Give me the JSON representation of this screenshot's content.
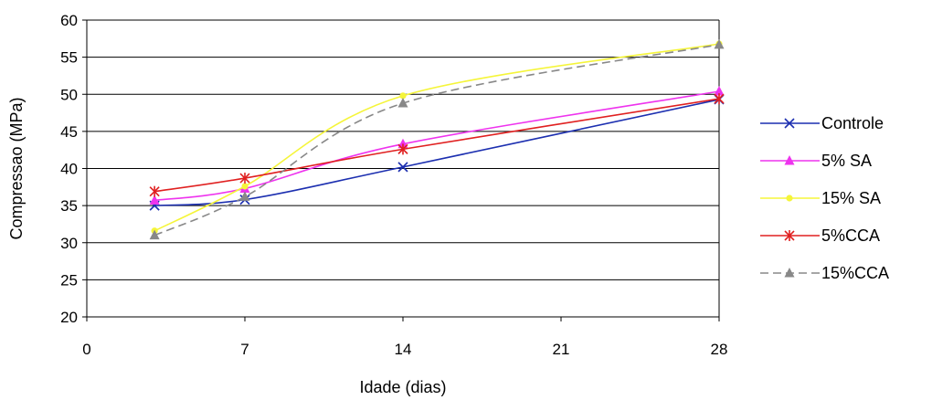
{
  "chart_data": {
    "type": "line",
    "title": "",
    "xlabel": "Idade (dias)",
    "ylabel": "Compressao (MPa)",
    "xlim": [
      0,
      28
    ],
    "ylim": [
      20,
      60
    ],
    "xticks": [
      0,
      7,
      14,
      21,
      28
    ],
    "yticks": [
      20,
      25,
      30,
      35,
      40,
      45,
      50,
      55,
      60
    ],
    "grid": "horizontal",
    "legend": "right",
    "series": [
      {
        "name": "Controle",
        "color": "#1c2fb0",
        "dash": "solid",
        "marker": "x",
        "x": [
          3,
          7,
          14,
          28
        ],
        "y": [
          35.0,
          35.8,
          40.2,
          49.3
        ]
      },
      {
        "name": "5% SA",
        "color": "#ee33ee",
        "dash": "solid",
        "marker": "triangle",
        "x": [
          3,
          7,
          14,
          28
        ],
        "y": [
          35.7,
          37.3,
          43.3,
          50.4
        ]
      },
      {
        "name": "15% SA",
        "color": "#f5f53a",
        "dash": "solid",
        "marker": "circle",
        "x": [
          3,
          7,
          14,
          28
        ],
        "y": [
          31.6,
          37.6,
          49.8,
          56.8
        ]
      },
      {
        "name": "5%CCA",
        "color": "#e02020",
        "dash": "solid",
        "marker": "star",
        "x": [
          3,
          7,
          14,
          28
        ],
        "y": [
          36.9,
          38.7,
          42.6,
          49.4
        ]
      },
      {
        "name": "15%CCA",
        "color": "#888888",
        "dash": "dashed",
        "marker": "triangle",
        "x": [
          3,
          7,
          14,
          28
        ],
        "y": [
          31.0,
          36.2,
          48.8,
          56.7
        ]
      }
    ]
  }
}
